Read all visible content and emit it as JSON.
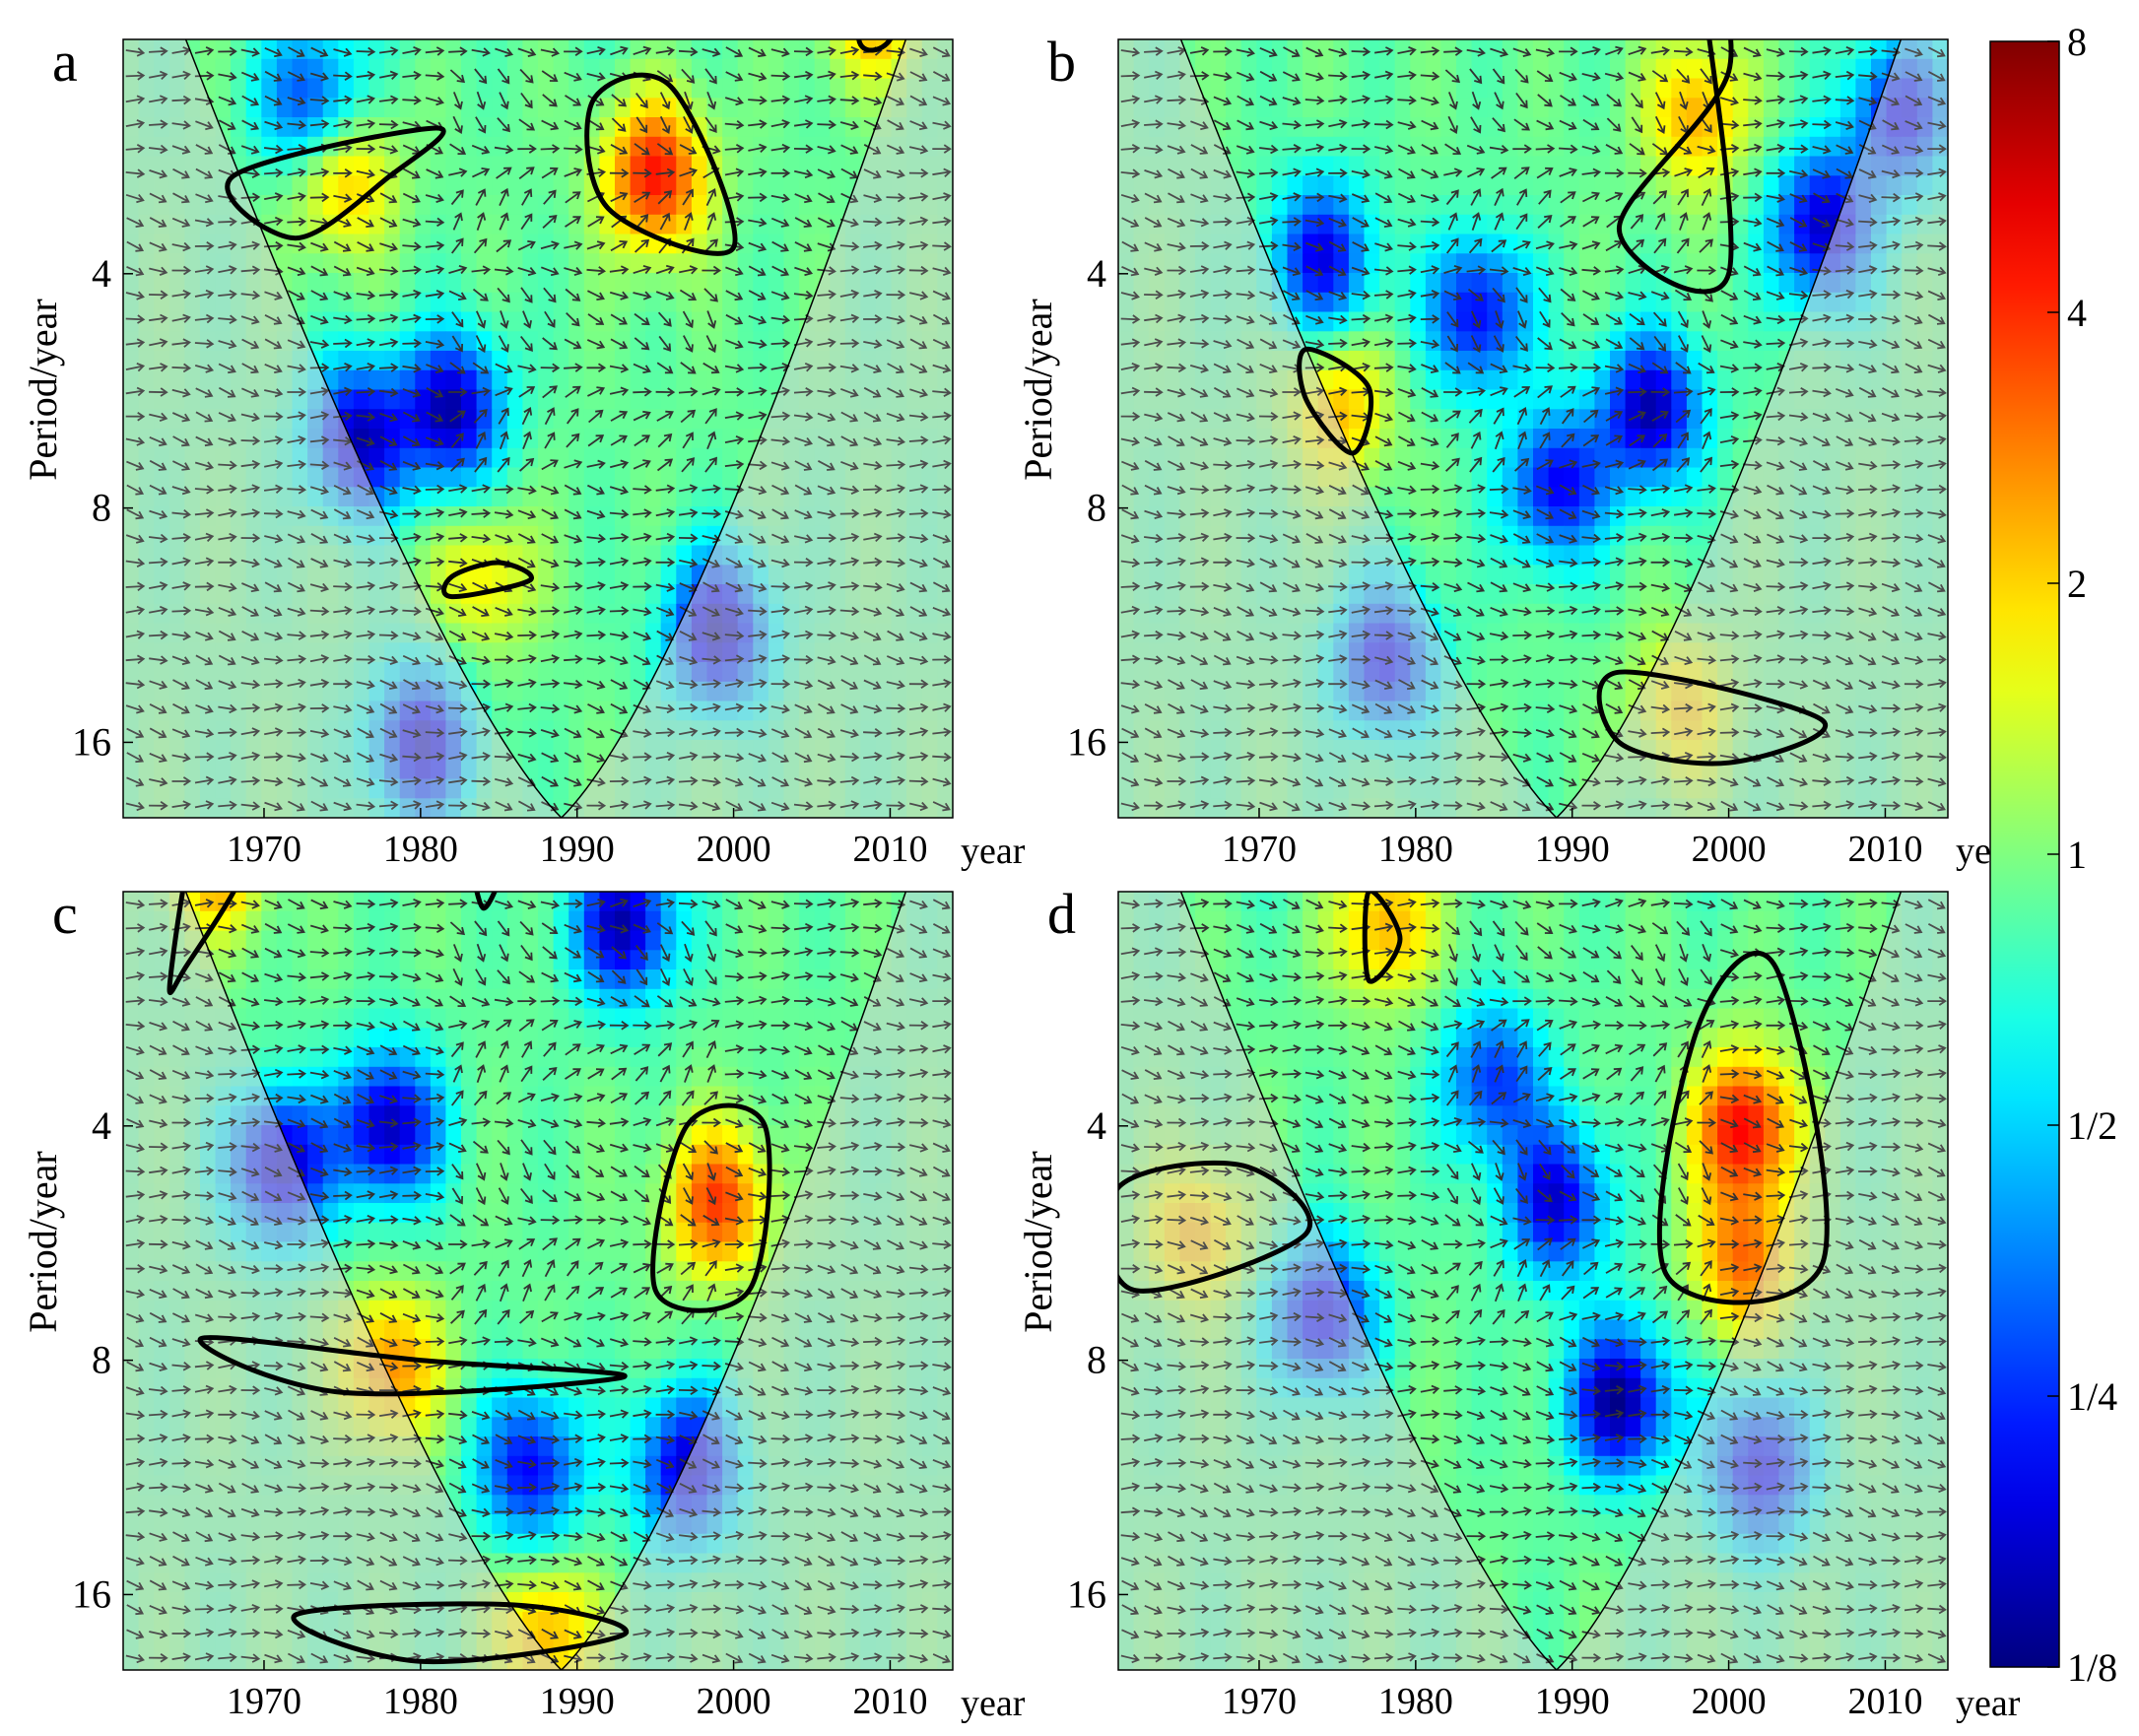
{
  "figure": {
    "colorbar": {
      "ticks": [
        "8",
        "4",
        "2",
        "1",
        "1/2",
        "1/4",
        "1/8"
      ],
      "values": [
        8,
        4,
        2,
        1,
        0.5,
        0.25,
        0.125
      ],
      "scale": "log2",
      "colormap": "jet"
    }
  },
  "chart_data": [
    {
      "type": "heatmap",
      "panel_label": "a",
      "xlabel": "year",
      "ylabel": "Period/year",
      "xticks": [
        1970,
        1980,
        1990,
        2000,
        2010
      ],
      "yticks": [
        4,
        8,
        16
      ],
      "xlim": [
        1961,
        2014
      ],
      "ylim_period": [
        2,
        20
      ],
      "yscale": "log2",
      "cone_of_influence": true,
      "phase_arrows": true,
      "significant_regions": [
        {
          "x": [
            1968,
            1972,
            1978,
            1981
          ],
          "period": [
            3.0,
            3.6,
            3.0,
            2.6
          ]
        },
        {
          "x": [
            1991,
            1996,
            2000,
            1992
          ],
          "period": [
            2.4,
            2.3,
            3.7,
            3.3
          ]
        },
        {
          "x": [
            2009,
            2011,
            2010,
            2008
          ],
          "period": [
            1.5,
            1.6,
            2.0,
            2.0
          ]
        },
        {
          "x": [
            1982,
            1985,
            1987,
            1982
          ],
          "period": [
            9.8,
            9.4,
            9.9,
            10.4
          ]
        }
      ],
      "hotspots": [
        {
          "x": 1995,
          "period": 3.0,
          "power": 4.5
        },
        {
          "x": 1975,
          "period": 3.0,
          "power": 2.4
        },
        {
          "x": 2009,
          "period": 1.8,
          "power": 2.6
        },
        {
          "x": 1984,
          "period": 9.9,
          "power": 1.8
        },
        {
          "x": 1982,
          "period": 6.0,
          "power": 0.15
        },
        {
          "x": 1999,
          "period": 11.5,
          "power": 0.15
        },
        {
          "x": 1976,
          "period": 6.5,
          "power": 0.16
        },
        {
          "x": 1980,
          "period": 16.0,
          "power": 0.17
        },
        {
          "x": 1979,
          "period": 1.4,
          "power": 0.2
        },
        {
          "x": 1993,
          "period": 1.4,
          "power": 0.18
        },
        {
          "x": 1973,
          "period": 2.4,
          "power": 0.25
        }
      ]
    },
    {
      "type": "heatmap",
      "panel_label": "b",
      "xlabel": "year",
      "ylabel": "Period/year",
      "xticks": [
        1970,
        1980,
        1990,
        2000,
        2010
      ],
      "yticks": [
        4,
        8,
        16
      ],
      "xlim": [
        1961,
        2014
      ],
      "ylim_period": [
        2,
        20
      ],
      "yscale": "log2",
      "cone_of_influence": true,
      "phase_arrows": true,
      "significant_regions": [
        {
          "x": [
            1998,
            2000,
            1993,
            2000
          ],
          "period": [
            1.5,
            2.2,
            3.5,
            4.0
          ]
        },
        {
          "x": [
            1973,
            1977,
            1976,
            1973
          ],
          "period": [
            5.0,
            5.6,
            6.8,
            5.8
          ]
        },
        {
          "x": [
            1993,
            2006,
            2000,
            1993
          ],
          "period": [
            13.0,
            15.0,
            17.0,
            16.0
          ]
        }
      ],
      "hotspots": [
        {
          "x": 1998,
          "period": 2.5,
          "power": 2.4
        },
        {
          "x": 1975,
          "period": 6.0,
          "power": 2.2
        },
        {
          "x": 1997,
          "period": 14.5,
          "power": 2.0
        },
        {
          "x": 1995,
          "period": 6.0,
          "power": 0.15
        },
        {
          "x": 1989,
          "period": 7.5,
          "power": 0.2
        },
        {
          "x": 2006,
          "period": 3.5,
          "power": 0.16
        },
        {
          "x": 1984,
          "period": 4.5,
          "power": 0.2
        },
        {
          "x": 1974,
          "period": 3.8,
          "power": 0.2
        },
        {
          "x": 1978,
          "period": 12.5,
          "power": 0.2
        },
        {
          "x": 2011,
          "period": 2.5,
          "power": 0.2
        }
      ]
    },
    {
      "type": "heatmap",
      "panel_label": "c",
      "xlabel": "year",
      "ylabel": "Period/year",
      "xticks": [
        1970,
        1980,
        1990,
        2000,
        2010
      ],
      "yticks": [
        4,
        8,
        16
      ],
      "xlim": [
        1961,
        2014
      ],
      "ylim_period": [
        2,
        20
      ],
      "yscale": "log2",
      "cone_of_influence": true,
      "phase_arrows": true,
      "significant_regions": [
        {
          "x": [
            1966,
            1969,
            1965,
            1964
          ],
          "period": [
            1.6,
            1.8,
            2.5,
            2.6
          ]
        },
        {
          "x": [
            1983,
            1986,
            1984
          ],
          "period": [
            1.5,
            1.6,
            2.1
          ]
        },
        {
          "x": [
            1997,
            2002,
            2001,
            1995
          ],
          "period": [
            4.0,
            4.0,
            6.5,
            6.5
          ]
        },
        {
          "x": [
            1966,
            1980,
            1993,
            1975
          ],
          "period": [
            7.5,
            8.0,
            8.4,
            8.8
          ]
        },
        {
          "x": [
            1972,
            1986,
            1993,
            1980
          ],
          "period": [
            17.0,
            16.5,
            18.0,
            19.5
          ]
        }
      ],
      "hotspots": [
        {
          "x": 1999,
          "period": 5.0,
          "power": 3.6
        },
        {
          "x": 1978,
          "period": 8.2,
          "power": 2.8
        },
        {
          "x": 1967,
          "period": 1.8,
          "power": 2.8
        },
        {
          "x": 1988,
          "period": 18.0,
          "power": 2.4
        },
        {
          "x": 1978,
          "period": 4.0,
          "power": 0.15
        },
        {
          "x": 1971,
          "period": 4.5,
          "power": 0.15
        },
        {
          "x": 1993,
          "period": 2.2,
          "power": 0.15
        },
        {
          "x": 1987,
          "period": 11.0,
          "power": 0.2
        },
        {
          "x": 1997,
          "period": 11.0,
          "power": 0.17
        }
      ]
    },
    {
      "type": "heatmap",
      "panel_label": "d",
      "xlabel": "year",
      "ylabel": "Period/year",
      "xticks": [
        1970,
        1980,
        1990,
        2000,
        2010
      ],
      "yticks": [
        4,
        8,
        16
      ],
      "xlim": [
        1961,
        2014
      ],
      "ylim_period": [
        2,
        20
      ],
      "yscale": "log2",
      "cone_of_influence": true,
      "phase_arrows": true,
      "significant_regions": [
        {
          "x": [
            1998,
            2003,
            2006,
            1996
          ],
          "period": [
            3.0,
            2.5,
            6.0,
            6.2
          ]
        },
        {
          "x": [
            1961,
            1969,
            1973,
            1962
          ],
          "period": [
            4.8,
            4.5,
            5.5,
            6.5
          ]
        },
        {
          "x": [
            1977,
            1979,
            1977
          ],
          "period": [
            2.0,
            2.3,
            2.6
          ]
        }
      ],
      "hotspots": [
        {
          "x": 2001,
          "period": 4.0,
          "power": 4.8
        },
        {
          "x": 2001,
          "period": 6.0,
          "power": 3.0
        },
        {
          "x": 1966,
          "period": 5.5,
          "power": 2.3
        },
        {
          "x": 1978,
          "period": 2.2,
          "power": 2.4
        },
        {
          "x": 1993,
          "period": 9.0,
          "power": 0.13
        },
        {
          "x": 2002,
          "period": 11.0,
          "power": 0.18
        },
        {
          "x": 1989,
          "period": 5.0,
          "power": 0.18
        },
        {
          "x": 1974,
          "period": 7.0,
          "power": 0.18
        },
        {
          "x": 1970,
          "period": 1.4,
          "power": 0.2
        },
        {
          "x": 2000,
          "period": 1.4,
          "power": 0.2
        },
        {
          "x": 1985,
          "period": 3.5,
          "power": 0.25
        }
      ]
    }
  ]
}
